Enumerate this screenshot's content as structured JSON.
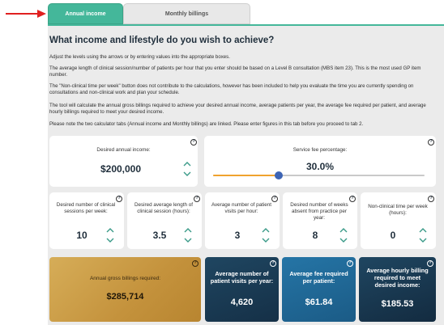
{
  "tabs": [
    {
      "label": "Annual income",
      "active": true
    },
    {
      "label": "Monthly billings",
      "active": false
    }
  ],
  "heading": "What income and lifestyle do you wish to achieve?",
  "paragraphs": [
    "Adjust the levels using the arrows or by entering values into the appropriate boxes.",
    "The average length of clinical session/number of patients per hour that you enter should be based on a Level B consultation (MBS item 23). This is the most used GP item number.",
    "The \"Non-clinical time per week\" button does not contribute to the calculations, however has been included to help you evaluate the time you are currently spending on consultations and non-clinical work and plan your schedule.",
    "The tool will calculate the annual gross billings required to achieve your desired annual income, average patients per year, the average fee required per patient, and average hourly billings required to meet your desired income.",
    "Please note the two calculator tabs (Annual income and Monthly billings) are linked. Please enter figures in this tab before you proceed to tab 2."
  ],
  "help_glyph": "?",
  "income": {
    "label": "Desired annual income:",
    "value": "$200,000"
  },
  "service_fee": {
    "label": "Service fee percentage:",
    "value": "30.0%",
    "slider_fraction": 0.31
  },
  "inputs": [
    {
      "label": "Desired number of clinical sessions per week:",
      "value": "10"
    },
    {
      "label": "Desired average length of clinical session (hours):",
      "value": "3.5"
    },
    {
      "label": "Average number of patient visits per hour:",
      "value": "3"
    },
    {
      "label": "Desired number of weeks absent from practice per year:",
      "value": "8"
    },
    {
      "label": "Non-clinical time per week (hours):",
      "value": "0"
    }
  ],
  "outputs": [
    {
      "label": "Annual gross billings required:",
      "value": "$285,714"
    },
    {
      "label": "Average number of patient visits per year:",
      "value": "4,620"
    },
    {
      "label": "Average fee required per patient:",
      "value": "$61.84"
    },
    {
      "label": "Average hourly billing required to meet desired income:",
      "value": "$185.53"
    }
  ],
  "colors": {
    "accent_green": "#44b79a",
    "slider_orange": "#f0a22e",
    "slider_thumb": "#3d64b4",
    "gold_card": "#c99a42",
    "navy_card": "#1b3a52",
    "blue_card": "#1f6390",
    "annotation_arrow": "#e02020"
  }
}
